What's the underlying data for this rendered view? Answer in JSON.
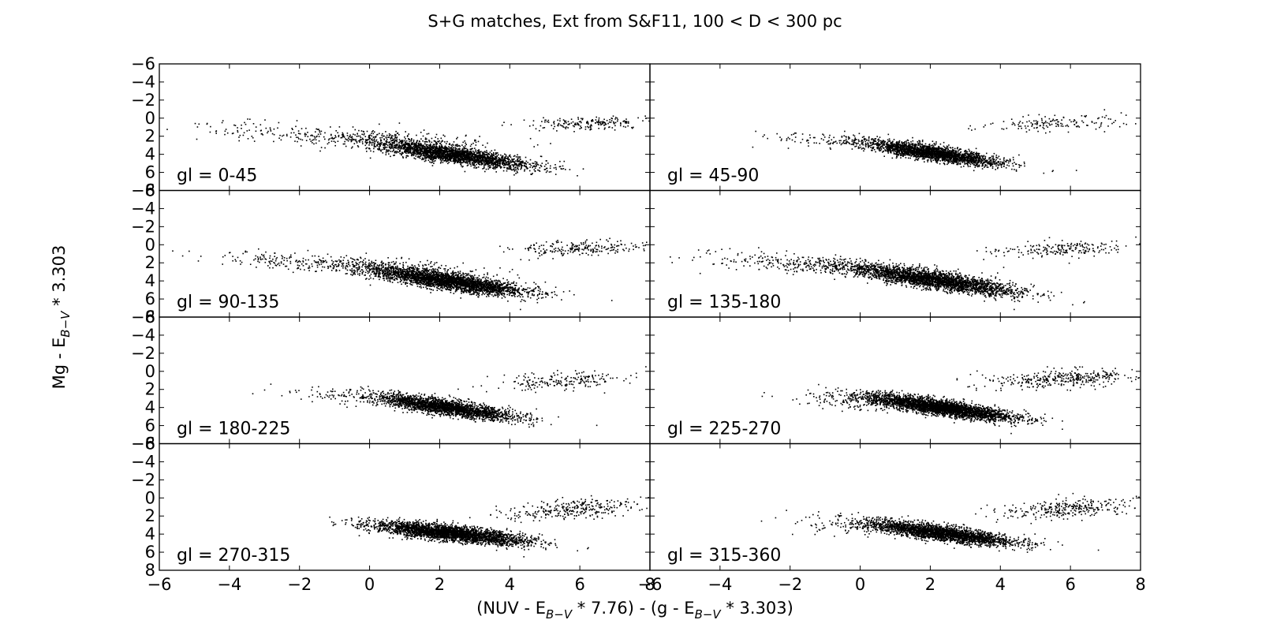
{
  "chart_data": {
    "type": "scatter",
    "title": "S+G matches, Ext from S&F11, 100 < D < 300 pc",
    "xlabel": {
      "pre": "(NUV - E",
      "sub1": "B−V",
      "mid": " * 7.76) - (g - E",
      "sub2": "B−V",
      "post": " * 3.303)"
    },
    "ylabel": {
      "pre": "Mg - E",
      "sub": "B−V",
      "post": " * 3.303"
    },
    "xlim": [
      -6,
      8
    ],
    "ylim": [
      8,
      -6
    ],
    "grid": false,
    "x_ticks": [
      "−6",
      "−4",
      "−2",
      "0",
      "2",
      "4",
      "6",
      "8"
    ],
    "y_ticks": [
      "−6",
      "−4",
      "−2",
      "0",
      "2",
      "4",
      "6",
      "8"
    ],
    "marker_color": "#000000",
    "panels": [
      {
        "label": "gl = 0-45",
        "clusters": [
          {
            "n": 2600,
            "xc": 2.3,
            "yc": 4.0,
            "sx": 1.15,
            "sy": 0.85,
            "slope": 0.55
          },
          {
            "n": 320,
            "xc": -0.5,
            "yc": 2.0,
            "sx": 2.2,
            "sy": 1.0,
            "slope": 0.2
          },
          {
            "n": 200,
            "xc": 6.3,
            "yc": 0.6,
            "sx": 0.9,
            "sy": 0.6,
            "slope": -0.1
          }
        ]
      },
      {
        "label": "gl = 45-90",
        "clusters": [
          {
            "n": 2400,
            "xc": 2.1,
            "yc": 3.9,
            "sx": 0.95,
            "sy": 0.7,
            "slope": 0.55
          },
          {
            "n": 160,
            "xc": 0.0,
            "yc": 2.6,
            "sx": 1.3,
            "sy": 0.7,
            "slope": 0.2
          },
          {
            "n": 150,
            "xc": 5.5,
            "yc": 0.6,
            "sx": 1.0,
            "sy": 0.8,
            "slope": -0.2
          }
        ]
      },
      {
        "label": "gl = 90-135",
        "clusters": [
          {
            "n": 3000,
            "xc": 2.2,
            "yc": 4.0,
            "sx": 1.1,
            "sy": 0.85,
            "slope": 0.55
          },
          {
            "n": 380,
            "xc": -0.5,
            "yc": 2.3,
            "sx": 2.0,
            "sy": 0.9,
            "slope": 0.25
          },
          {
            "n": 220,
            "xc": 5.8,
            "yc": 0.4,
            "sx": 1.0,
            "sy": 0.7,
            "slope": -0.1
          }
        ]
      },
      {
        "label": "gl = 135-180",
        "clusters": [
          {
            "n": 2800,
            "xc": 2.1,
            "yc": 3.9,
            "sx": 1.2,
            "sy": 0.85,
            "slope": 0.55
          },
          {
            "n": 380,
            "xc": -1.0,
            "yc": 2.3,
            "sx": 1.8,
            "sy": 0.9,
            "slope": 0.25
          },
          {
            "n": 200,
            "xc": 5.6,
            "yc": 0.5,
            "sx": 1.0,
            "sy": 0.8,
            "slope": -0.1
          }
        ]
      },
      {
        "label": "gl = 180-225",
        "clusters": [
          {
            "n": 2300,
            "xc": 2.2,
            "yc": 4.0,
            "sx": 1.0,
            "sy": 0.75,
            "slope": 0.55
          },
          {
            "n": 120,
            "xc": -0.3,
            "yc": 2.8,
            "sx": 1.2,
            "sy": 0.8,
            "slope": 0.2
          },
          {
            "n": 200,
            "xc": 5.5,
            "yc": 1.0,
            "sx": 1.0,
            "sy": 0.9,
            "slope": -0.2
          }
        ]
      },
      {
        "label": "gl = 225-270",
        "clusters": [
          {
            "n": 3200,
            "xc": 2.3,
            "yc": 4.0,
            "sx": 1.05,
            "sy": 0.75,
            "slope": 0.55
          },
          {
            "n": 160,
            "xc": 0.0,
            "yc": 3.4,
            "sx": 1.0,
            "sy": 0.8,
            "slope": 0.2
          },
          {
            "n": 360,
            "xc": 5.8,
            "yc": 0.8,
            "sx": 1.1,
            "sy": 0.9,
            "slope": -0.2
          }
        ]
      },
      {
        "label": "gl = 270-315",
        "clusters": [
          {
            "n": 3000,
            "xc": 2.3,
            "yc": 3.9,
            "sx": 1.1,
            "sy": 0.75,
            "slope": 0.4
          },
          {
            "n": 300,
            "xc": 5.8,
            "yc": 1.2,
            "sx": 1.0,
            "sy": 1.0,
            "slope": -0.3
          }
        ]
      },
      {
        "label": "gl = 315-360",
        "clusters": [
          {
            "n": 2600,
            "xc": 2.3,
            "yc": 3.9,
            "sx": 1.05,
            "sy": 0.75,
            "slope": 0.5
          },
          {
            "n": 120,
            "xc": 0.0,
            "yc": 3.0,
            "sx": 1.3,
            "sy": 0.9,
            "slope": 0.2
          },
          {
            "n": 300,
            "xc": 6.0,
            "yc": 1.2,
            "sx": 1.0,
            "sy": 0.9,
            "slope": -0.2
          }
        ]
      }
    ]
  }
}
